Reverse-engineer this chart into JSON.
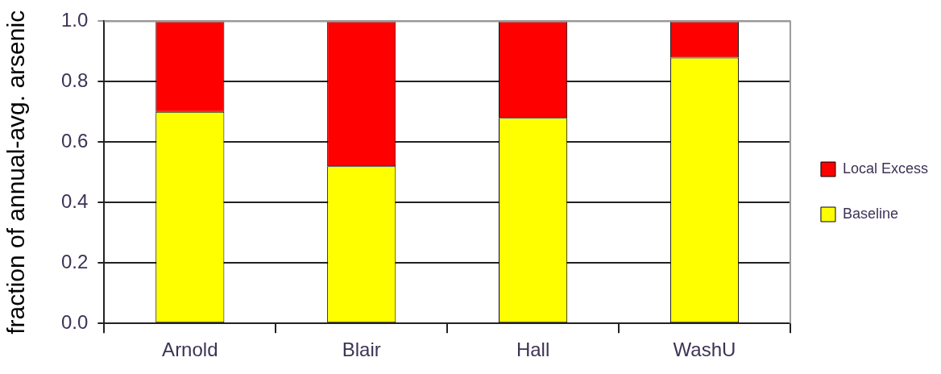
{
  "chart_data": {
    "type": "bar",
    "ylabel": "fraction of annual-avg. arsenic",
    "categories": [
      "Arnold",
      "Blair",
      "Hall",
      "WashU"
    ],
    "series": [
      {
        "name": "Baseline",
        "color": "#ffff00",
        "values": [
          0.7,
          0.52,
          0.68,
          0.88
        ]
      },
      {
        "name": "Local Excess",
        "color": "#ff0000",
        "values": [
          0.3,
          0.48,
          0.32,
          0.12
        ]
      }
    ],
    "stacked": true,
    "ylim": [
      0,
      1
    ],
    "yticks": [
      {
        "value": 0,
        "label": "0.0"
      },
      {
        "value": 0.2,
        "label": "0.2"
      },
      {
        "value": 0.4,
        "label": "0.4"
      },
      {
        "value": 0.6,
        "label": "0.6"
      },
      {
        "value": 0.8,
        "label": "0.8"
      },
      {
        "value": 1,
        "label": "1.0"
      }
    ],
    "grid": "y",
    "legend": "right"
  }
}
